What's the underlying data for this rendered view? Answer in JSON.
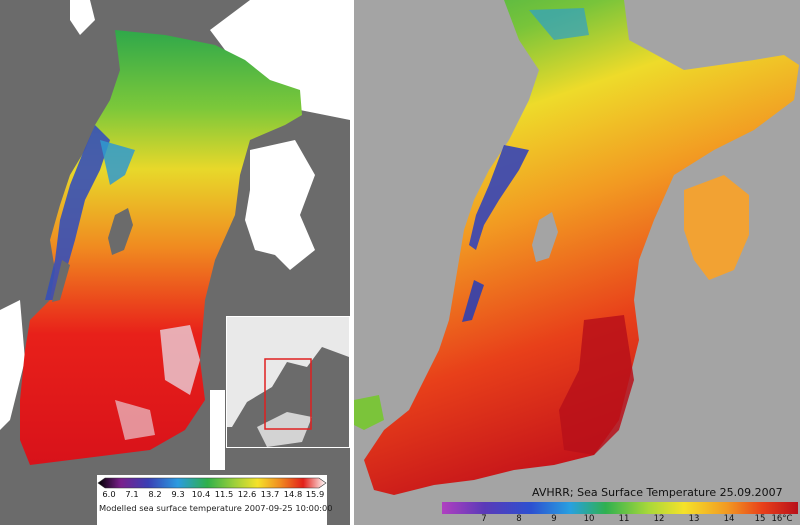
{
  "left_panel": {
    "caption": "Modelled sea surface temperature 2007-09-25 10:00:00",
    "colorbar_ticks": [
      "6.0",
      "7.1",
      "8.2",
      "9.3",
      "10.4",
      "11.5",
      "12.6",
      "13.7",
      "14.8",
      "15.9"
    ]
  },
  "right_panel": {
    "caption": "AVHRR; Sea Surface Temperature 25.09.2007",
    "colorbar_ticks": [
      "7",
      "8",
      "9",
      "10",
      "11",
      "12",
      "13",
      "14",
      "15",
      "16°C"
    ]
  },
  "colors": {
    "land_left": "#6b6b6b",
    "ocean_bg_right": "#a4a4a4",
    "model_outside": "#ffffff",
    "inset_box": "#e02020"
  }
}
